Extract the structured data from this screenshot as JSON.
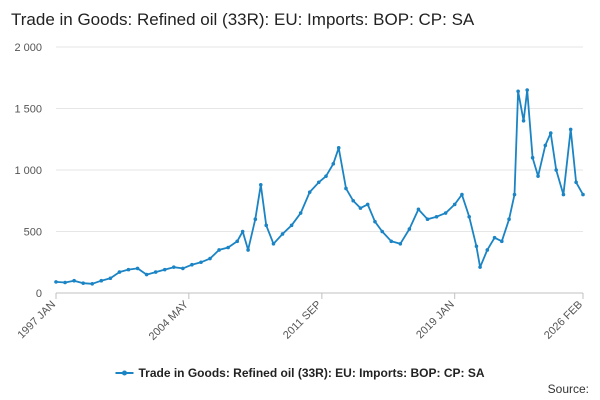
{
  "chart_data": {
    "type": "line",
    "title": "Trade in Goods: Refined oil (33R): EU: Imports: BOP: CP: SA",
    "xlabel": "",
    "ylabel": "",
    "ylim": [
      0,
      2000
    ],
    "y_ticks": [
      0,
      500,
      1000,
      1500,
      2000
    ],
    "y_tick_labels": [
      "0",
      "500",
      "1 000",
      "1 500",
      "2 000"
    ],
    "x_tick_labels": [
      "1997 JAN",
      "2004 MAY",
      "2011 SEP",
      "2019 JAN",
      "2026 FEB"
    ],
    "x_tick_years": [
      1997.0,
      2004.33,
      2011.67,
      2019.0,
      2026.08
    ],
    "xlim": [
      1997.0,
      2026.08
    ],
    "grid": true,
    "legend_position": "bottom",
    "color": "#1b84c4",
    "series": [
      {
        "name": "Trade in Goods: Refined oil (33R): EU: Imports: BOP: CP: SA",
        "x": [
          1997.0,
          1997.5,
          1998.0,
          1998.5,
          1999.0,
          1999.5,
          2000.0,
          2000.5,
          2001.0,
          2001.5,
          2002.0,
          2002.5,
          2003.0,
          2003.5,
          2004.0,
          2004.5,
          2005.0,
          2005.5,
          2006.0,
          2006.5,
          2007.0,
          2007.3,
          2007.6,
          2008.0,
          2008.3,
          2008.6,
          2009.0,
          2009.5,
          2010.0,
          2010.5,
          2011.0,
          2011.5,
          2011.9,
          2012.3,
          2012.6,
          2013.0,
          2013.4,
          2013.8,
          2014.2,
          2014.6,
          2015.0,
          2015.5,
          2016.0,
          2016.5,
          2017.0,
          2017.5,
          2018.0,
          2018.5,
          2019.0,
          2019.4,
          2019.8,
          2020.2,
          2020.4,
          2020.8,
          2021.2,
          2021.6,
          2022.0,
          2022.3,
          2022.5,
          2022.8,
          2023.0,
          2023.3,
          2023.6,
          2024.0,
          2024.3,
          2024.6,
          2025.0,
          2025.4,
          2025.7,
          2026.08
        ],
        "values": [
          90,
          85,
          100,
          80,
          75,
          100,
          120,
          170,
          190,
          200,
          150,
          170,
          190,
          210,
          200,
          230,
          250,
          280,
          350,
          370,
          420,
          500,
          350,
          600,
          880,
          550,
          400,
          480,
          550,
          650,
          820,
          900,
          950,
          1050,
          1180,
          850,
          750,
          690,
          720,
          580,
          500,
          420,
          400,
          520,
          680,
          600,
          620,
          650,
          720,
          800,
          620,
          380,
          210,
          350,
          450,
          420,
          600,
          800,
          1640,
          1400,
          1650,
          1100,
          950,
          1200,
          1300,
          1000,
          800,
          1330,
          900,
          800
        ]
      }
    ]
  },
  "source": {
    "label": "Source:"
  }
}
